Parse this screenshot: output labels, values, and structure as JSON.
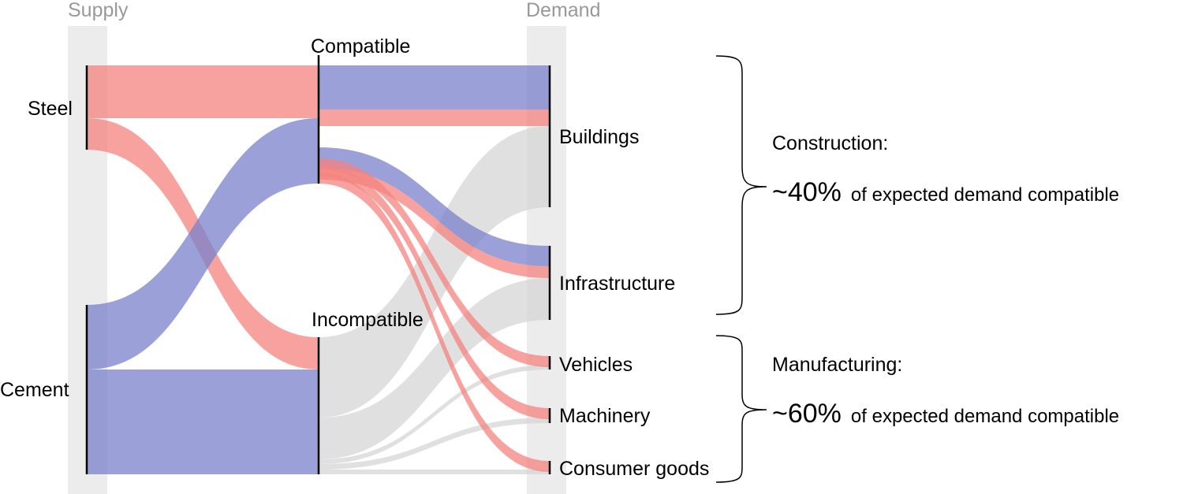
{
  "colors": {
    "steel": "#f4837f",
    "cement": "#7a80cc",
    "incompatible_flow": "#d6d6d6",
    "column_band": "#e0e0e0",
    "column_label": "#999999"
  },
  "columns": {
    "supply": "Supply",
    "demand": "Demand"
  },
  "nodes": {
    "steel": "Steel",
    "cement": "Cement",
    "compatible": "Compatible",
    "incompatible": "Incompatible",
    "buildings": "Buildings",
    "infrastructure": "Infrastructure",
    "vehicles": "Vehicles",
    "machinery": "Machinery",
    "consumer_goods": "Consumer goods"
  },
  "flows": [
    {
      "from": "Steel",
      "to": "Compatible",
      "material": "steel"
    },
    {
      "from": "Steel",
      "to": "Incompatible",
      "material": "steel"
    },
    {
      "from": "Cement",
      "to": "Compatible",
      "material": "cement"
    },
    {
      "from": "Cement",
      "to": "Incompatible",
      "material": "cement"
    },
    {
      "from": "Compatible",
      "to": "Buildings",
      "material": "cement"
    },
    {
      "from": "Compatible",
      "to": "Buildings",
      "material": "steel"
    },
    {
      "from": "Compatible",
      "to": "Infrastructure",
      "material": "cement"
    },
    {
      "from": "Compatible",
      "to": "Infrastructure",
      "material": "steel"
    },
    {
      "from": "Compatible",
      "to": "Vehicles",
      "material": "steel"
    },
    {
      "from": "Compatible",
      "to": "Machinery",
      "material": "steel"
    },
    {
      "from": "Compatible",
      "to": "Consumer goods",
      "material": "steel"
    },
    {
      "from": "Incompatible",
      "to": "Buildings",
      "material": "mixed"
    },
    {
      "from": "Incompatible",
      "to": "Infrastructure",
      "material": "mixed"
    },
    {
      "from": "Incompatible",
      "to": "Vehicles",
      "material": "mixed"
    },
    {
      "from": "Incompatible",
      "to": "Machinery",
      "material": "mixed"
    },
    {
      "from": "Incompatible",
      "to": "Consumer goods",
      "material": "mixed"
    }
  ],
  "groups": {
    "construction": {
      "title": "Construction:",
      "value": "~40%",
      "rest": "of expected demand compatible"
    },
    "manufacturing": {
      "title": "Manufacturing:",
      "value": "~60%",
      "rest": "of expected demand compatible"
    }
  }
}
